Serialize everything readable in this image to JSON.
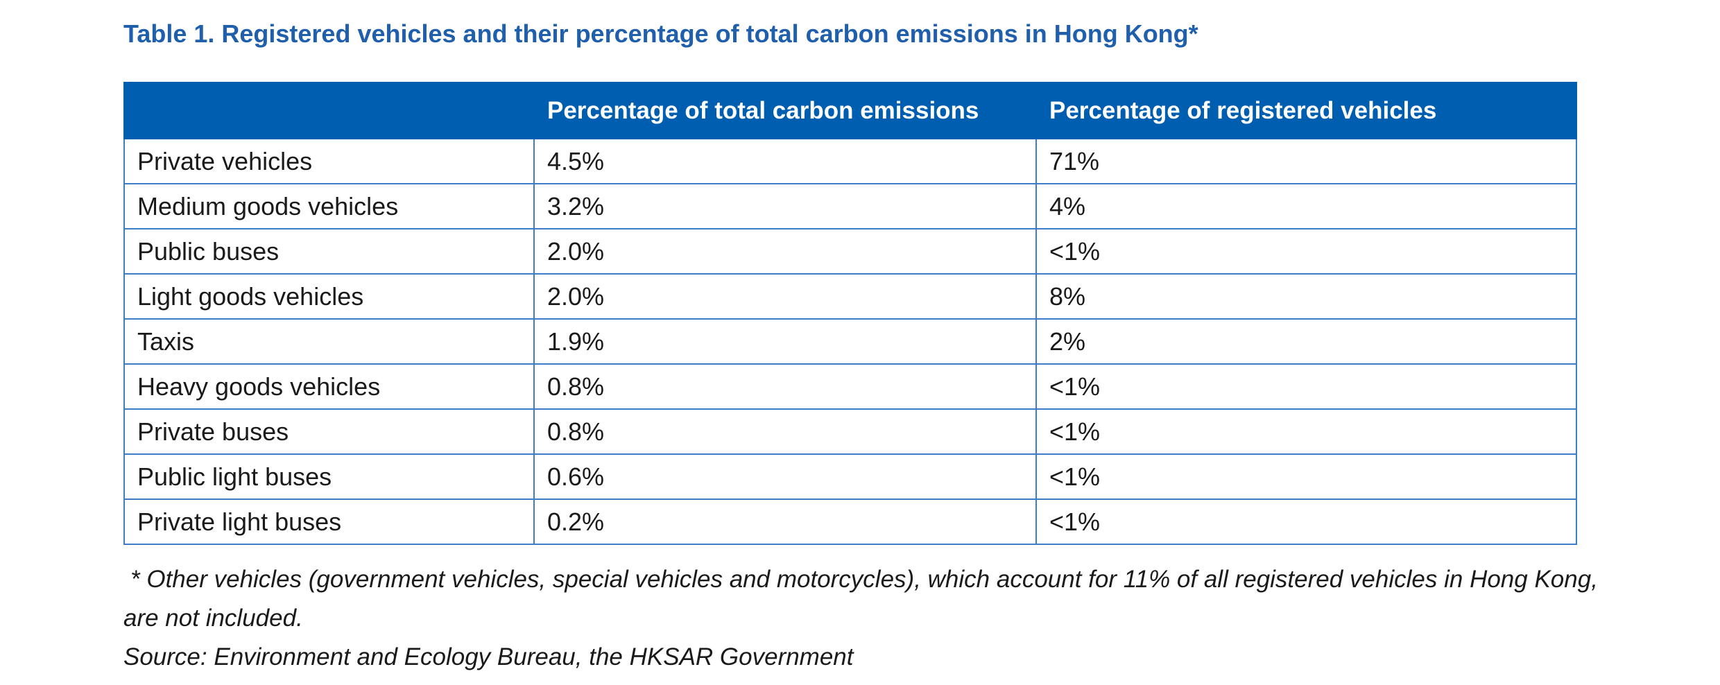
{
  "title": "Table 1. Registered vehicles and their percentage of total carbon emissions in Hong Kong*",
  "table": {
    "headers": [
      "",
      "Percentage of total carbon emissions",
      "Percentage of registered vehicles"
    ],
    "rows": [
      [
        "Private vehicles",
        "4.5%",
        "71%"
      ],
      [
        "Medium goods vehicles",
        "3.2%",
        "4%"
      ],
      [
        "Public buses",
        "2.0%",
        "<1%"
      ],
      [
        "Light goods vehicles",
        "2.0%",
        "8%"
      ],
      [
        "Taxis",
        "1.9%",
        "2%"
      ],
      [
        "Heavy goods vehicles",
        "0.8%",
        "<1%"
      ],
      [
        "Private buses",
        "0.8%",
        "<1%"
      ],
      [
        "Public light buses",
        "0.6%",
        "<1%"
      ],
      [
        "Private light buses",
        "0.2%",
        "<1%"
      ]
    ]
  },
  "footnote": {
    "line1": "* Other vehicles (government vehicles, special vehicles and motorcycles), which account for 11% of all registered vehicles in Hong Kong,",
    "line2": "are not included.",
    "source": "Source: Environment and Ecology Bureau, the HKSAR Government"
  },
  "colors": {
    "title": "#1f5fab",
    "header_bg": "#005eb1",
    "border": "#3d7cc7"
  }
}
